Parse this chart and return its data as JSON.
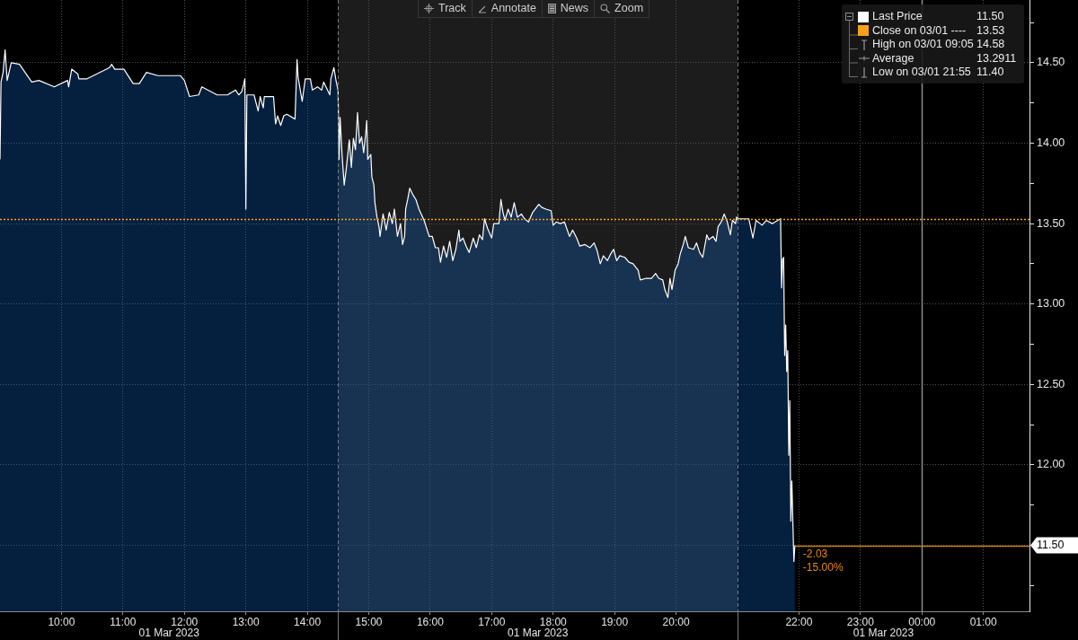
{
  "chart_data": {
    "type": "area",
    "x": [
      "2023-03-01T09:00",
      "2023-03-01T09:01",
      "2023-03-01T09:03",
      "2023-03-01T09:05",
      "2023-03-01T09:07",
      "2023-03-01T09:11",
      "2023-03-01T09:19",
      "2023-03-01T09:31",
      "2023-03-01T09:38",
      "2023-03-01T09:53",
      "2023-03-01T10:06",
      "2023-03-01T10:07",
      "2023-03-01T10:10",
      "2023-03-01T10:16",
      "2023-03-01T10:17",
      "2023-03-01T10:25",
      "2023-03-01T10:47",
      "2023-03-01T10:49",
      "2023-03-01T10:52",
      "2023-03-01T11:01",
      "2023-03-01T11:10",
      "2023-03-01T11:16",
      "2023-03-01T11:23",
      "2023-03-01T11:34",
      "2023-03-01T11:56",
      "2023-03-01T12:00",
      "2023-03-01T12:05",
      "2023-03-01T12:14",
      "2023-03-01T12:17",
      "2023-03-01T12:32",
      "2023-03-01T12:42",
      "2023-03-01T12:50",
      "2023-03-01T12:53",
      "2023-03-01T12:56",
      "2023-03-01T12:58",
      "2023-03-01T12:59",
      "2023-03-01T13:00",
      "2023-03-01T13:01",
      "2023-03-01T13:08",
      "2023-03-01T13:12",
      "2023-03-01T13:14",
      "2023-03-01T13:17",
      "2023-03-01T13:18",
      "2023-03-01T13:27",
      "2023-03-01T13:29",
      "2023-03-01T13:31",
      "2023-03-01T13:34",
      "2023-03-01T13:37",
      "2023-03-01T13:40",
      "2023-03-01T13:48",
      "2023-03-01T13:50",
      "2023-03-01T13:51",
      "2023-03-01T13:55",
      "2023-03-01T13:58",
      "2023-03-01T14:03",
      "2023-03-01T14:05",
      "2023-03-01T14:10",
      "2023-03-01T14:14",
      "2023-03-01T14:16",
      "2023-03-01T14:22",
      "2023-03-01T14:23",
      "2023-03-01T14:26",
      "2023-03-01T14:28",
      "2023-03-01T14:30",
      "2023-03-01T14:31",
      "2023-03-01T14:32",
      "2023-03-01T14:34",
      "2023-03-01T14:36",
      "2023-03-01T14:38",
      "2023-03-01T14:41",
      "2023-03-01T14:43",
      "2023-03-01T14:45",
      "2023-03-01T14:47",
      "2023-03-01T14:49",
      "2023-03-01T14:51",
      "2023-03-01T14:53",
      "2023-03-01T14:55",
      "2023-03-01T14:57",
      "2023-03-01T14:58",
      "2023-03-01T14:59",
      "2023-03-01T15:02",
      "2023-03-01T15:03",
      "2023-03-01T15:05",
      "2023-03-01T15:06",
      "2023-03-01T15:08",
      "2023-03-01T15:10",
      "2023-03-01T15:11",
      "2023-03-01T15:14",
      "2023-03-01T15:17",
      "2023-03-01T15:20",
      "2023-03-01T15:23",
      "2023-03-01T15:25",
      "2023-03-01T15:28",
      "2023-03-01T15:31",
      "2023-03-01T15:33",
      "2023-03-01T15:35",
      "2023-03-01T15:36",
      "2023-03-01T15:38",
      "2023-03-01T15:40",
      "2023-03-01T15:43",
      "2023-03-01T15:46",
      "2023-03-01T15:49",
      "2023-03-01T15:54",
      "2023-03-01T15:56",
      "2023-03-01T15:59",
      "2023-03-01T16:02",
      "2023-03-01T16:05",
      "2023-03-01T16:08",
      "2023-03-01T16:10",
      "2023-03-01T16:13",
      "2023-03-01T16:16",
      "2023-03-01T16:19",
      "2023-03-01T16:22",
      "2023-03-01T16:25",
      "2023-03-01T16:28",
      "2023-03-01T16:29",
      "2023-03-01T16:32",
      "2023-03-01T16:35",
      "2023-03-01T16:38",
      "2023-03-01T16:42",
      "2023-03-01T16:45",
      "2023-03-01T16:48",
      "2023-03-01T16:51",
      "2023-03-01T16:53",
      "2023-03-01T16:56",
      "2023-03-01T17:00",
      "2023-03-01T17:02",
      "2023-03-01T17:07",
      "2023-03-01T17:09",
      "2023-03-01T17:11",
      "2023-03-01T17:13",
      "2023-03-01T17:16",
      "2023-03-01T17:19",
      "2023-03-01T17:22",
      "2023-03-01T17:25",
      "2023-03-01T17:29",
      "2023-03-01T17:32",
      "2023-03-01T17:36",
      "2023-03-01T17:40",
      "2023-03-01T17:46",
      "2023-03-01T17:49",
      "2023-03-01T17:53",
      "2023-03-01T17:58",
      "2023-03-01T18:00",
      "2023-03-01T18:03",
      "2023-03-01T18:07",
      "2023-03-01T18:11",
      "2023-03-01T18:16",
      "2023-03-01T18:19",
      "2023-03-01T18:23",
      "2023-03-01T18:26",
      "2023-03-01T18:31",
      "2023-03-01T18:36",
      "2023-03-01T18:40",
      "2023-03-01T18:43",
      "2023-03-01T18:46",
      "2023-03-01T18:49",
      "2023-03-01T18:53",
      "2023-03-01T18:56",
      "2023-03-01T18:59",
      "2023-03-01T19:02",
      "2023-03-01T19:05",
      "2023-03-01T19:10",
      "2023-03-01T19:14",
      "2023-03-01T19:18",
      "2023-03-01T19:23",
      "2023-03-01T19:25",
      "2023-03-01T19:31",
      "2023-03-01T19:36",
      "2023-03-01T19:40",
      "2023-03-01T19:43",
      "2023-03-01T19:47",
      "2023-03-01T19:49",
      "2023-03-01T19:52",
      "2023-03-01T19:54",
      "2023-03-01T19:56",
      "2023-03-01T19:59",
      "2023-03-01T20:02",
      "2023-03-01T20:04",
      "2023-03-01T20:07",
      "2023-03-01T20:09",
      "2023-03-01T20:12",
      "2023-03-01T20:17",
      "2023-03-01T20:20",
      "2023-03-01T20:23",
      "2023-03-01T20:26",
      "2023-03-01T20:30",
      "2023-03-01T20:32",
      "2023-03-01T20:36",
      "2023-03-01T20:39",
      "2023-03-01T20:41",
      "2023-03-01T20:44",
      "2023-03-01T20:47",
      "2023-03-01T20:50",
      "2023-03-01T20:53",
      "2023-03-01T20:55",
      "2023-03-01T20:58",
      "2023-03-01T20:59",
      "2023-03-01T21:01",
      "2023-03-01T21:11",
      "2023-03-01T21:15",
      "2023-03-01T21:18",
      "2023-03-01T21:24",
      "2023-03-01T21:28",
      "2023-03-01T21:34",
      "2023-03-01T21:42",
      "2023-03-01T21:43",
      "2023-03-01T21:44",
      "2023-03-01T21:45",
      "2023-03-01T21:46",
      "2023-03-01T21:47",
      "2023-03-01T21:48",
      "2023-03-01T21:49",
      "2023-03-01T21:50",
      "2023-03-01T21:51",
      "2023-03-01T21:52",
      "2023-03-01T21:53",
      "2023-03-01T21:55",
      "2023-03-01T21:56"
    ],
    "series": [
      {
        "name": "Last Price",
        "color": "#ffffff",
        "values": [
          13.9,
          14.38,
          14.44,
          14.58,
          14.39,
          14.5,
          14.49,
          14.38,
          14.39,
          14.35,
          14.39,
          14.35,
          14.46,
          14.43,
          14.4,
          14.4,
          14.47,
          14.49,
          14.46,
          14.46,
          14.37,
          14.37,
          14.44,
          14.42,
          14.42,
          14.39,
          14.29,
          14.3,
          14.35,
          14.3,
          14.3,
          14.33,
          14.3,
          14.32,
          14.37,
          14.4,
          13.59,
          14.3,
          14.3,
          14.2,
          14.29,
          14.22,
          14.29,
          14.29,
          14.12,
          14.17,
          14.11,
          14.17,
          14.18,
          14.15,
          14.52,
          14.41,
          14.26,
          14.4,
          14.4,
          14.33,
          14.35,
          14.33,
          14.38,
          14.3,
          14.4,
          14.47,
          14.39,
          14.33,
          13.9,
          14.16,
          13.92,
          13.74,
          13.84,
          14.02,
          13.85,
          14.03,
          13.96,
          14.19,
          14.0,
          14.04,
          13.94,
          14.06,
          14.14,
          13.9,
          13.93,
          13.79,
          13.74,
          13.63,
          13.54,
          13.48,
          13.42,
          13.56,
          13.46,
          13.57,
          13.5,
          13.59,
          13.42,
          13.5,
          13.37,
          13.42,
          13.59,
          13.65,
          13.72,
          13.68,
          13.65,
          13.59,
          13.52,
          13.48,
          13.42,
          13.42,
          13.35,
          13.35,
          13.26,
          13.36,
          13.29,
          13.39,
          13.27,
          13.34,
          13.46,
          13.39,
          13.41,
          13.36,
          13.32,
          13.41,
          13.35,
          13.43,
          13.4,
          13.53,
          13.47,
          13.41,
          13.5,
          13.5,
          13.65,
          13.57,
          13.52,
          13.59,
          13.54,
          13.63,
          13.54,
          13.56,
          13.53,
          13.51,
          13.57,
          13.62,
          13.6,
          13.59,
          13.58,
          13.49,
          13.51,
          13.5,
          13.51,
          13.42,
          13.46,
          13.41,
          13.36,
          13.37,
          13.35,
          13.38,
          13.33,
          13.25,
          13.3,
          13.27,
          13.31,
          13.34,
          13.27,
          13.3,
          13.29,
          13.26,
          13.25,
          13.21,
          13.15,
          13.16,
          13.16,
          13.19,
          13.16,
          13.15,
          13.09,
          13.04,
          13.16,
          13.09,
          13.21,
          13.25,
          13.31,
          13.37,
          13.42,
          13.35,
          13.34,
          13.38,
          13.32,
          13.29,
          13.43,
          13.4,
          13.42,
          13.39,
          13.48,
          13.51,
          13.56,
          13.51,
          13.43,
          13.52,
          13.5,
          13.54,
          13.53,
          13.53,
          13.41,
          13.52,
          13.49,
          13.52,
          13.5,
          13.53,
          13.1,
          13.28,
          13.29,
          12.68,
          12.87,
          12.58,
          12.71,
          12.06,
          12.4,
          11.65,
          11.9,
          11.4,
          11.5
        ]
      }
    ],
    "xlim": [
      "2023-03-01T09:00",
      "2023-03-02T01:45"
    ],
    "xticks": [
      {
        "value": "2023-03-01T10:00",
        "label": "10:00"
      },
      {
        "value": "2023-03-01T11:00",
        "label": "11:00"
      },
      {
        "value": "2023-03-01T12:00",
        "label": "12:00"
      },
      {
        "value": "2023-03-01T13:00",
        "label": "13:00"
      },
      {
        "value": "2023-03-01T14:00",
        "label": "14:00"
      },
      {
        "value": "2023-03-01T15:00",
        "label": "15:00"
      },
      {
        "value": "2023-03-01T16:00",
        "label": "16:00"
      },
      {
        "value": "2023-03-01T17:00",
        "label": "17:00"
      },
      {
        "value": "2023-03-01T18:00",
        "label": "18:00"
      },
      {
        "value": "2023-03-01T19:00",
        "label": "19:00"
      },
      {
        "value": "2023-03-01T20:00",
        "label": "20:00"
      },
      {
        "value": "2023-03-01T22:00",
        "label": "22:00"
      },
      {
        "value": "2023-03-01T23:00",
        "label": "23:00"
      },
      {
        "value": "2023-03-02T00:00",
        "label": "00:00"
      },
      {
        "value": "2023-03-02T01:00",
        "label": "01:00"
      }
    ],
    "ylim": [
      11.09,
      14.89
    ],
    "yticks": [
      {
        "value": 11.25,
        "label": null
      },
      {
        "value": 11.5,
        "label": "11.50"
      },
      {
        "value": 11.75,
        "label": null
      },
      {
        "value": 12,
        "label": "12.00"
      },
      {
        "value": 12.25,
        "label": null
      },
      {
        "value": 12.5,
        "label": "12.50"
      },
      {
        "value": 12.75,
        "label": null
      },
      {
        "value": 13,
        "label": "13.00"
      },
      {
        "value": 13.25,
        "label": null
      },
      {
        "value": 13.5,
        "label": "13.50"
      },
      {
        "value": 13.75,
        "label": null
      },
      {
        "value": 14,
        "label": "14.00"
      },
      {
        "value": 14.25,
        "label": null
      },
      {
        "value": 14.5,
        "label": "14.50"
      },
      {
        "value": 14.75,
        "label": null
      }
    ],
    "grid": true,
    "legend": "top right",
    "ref_lines": [
      {
        "axis": "y",
        "value": 13.53,
        "label": "Close on 03/01 ----",
        "color": "#f7a11a",
        "line_style": "dotted"
      },
      {
        "axis": "y",
        "value": 11.5,
        "color": "#c98112"
      },
      {
        "axis": "x",
        "value": "2023-03-02T00:00",
        "color": "#8a8a8a"
      },
      {
        "axis": "x",
        "value": "2023-03-01T14:30",
        "color": "#7a7a7a",
        "line_style": "dashed"
      },
      {
        "axis": "x",
        "value": "2023-03-01T21:00",
        "color": "#7a7a7a",
        "line_style": "dashed"
      }
    ],
    "bands": [
      {
        "axis": "x",
        "from": "2023-03-01T14:30",
        "to": "2023-03-01T21:00",
        "color": "#1c1c1c"
      }
    ],
    "annotations": [
      "Track",
      "Annotate",
      "News",
      "Zoom",
      "01 Mar 2023",
      "01 Mar 2023",
      "01 Mar 2023",
      "11.50",
      "13.53",
      "High on 03/01 09:05",
      "14.58",
      "Average",
      "13.2911",
      "Low on 03/01 21:55",
      "11.40",
      {
        "text": "-2.03",
        "x": "2023-03-01T21:56",
        "y": 11.5
      },
      {
        "text": "-15.00%",
        "x": "2023-03-01T21:56",
        "y": 11.5
      }
    ]
  }
}
